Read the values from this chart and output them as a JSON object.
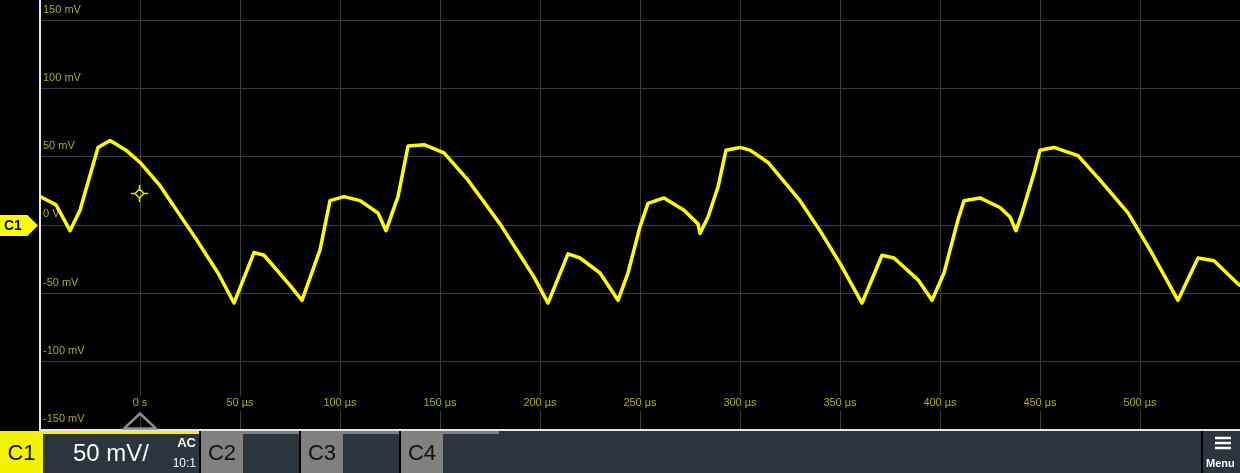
{
  "chart_data": {
    "type": "line",
    "x": [
      -50,
      -42,
      -35,
      -30,
      -21,
      -15,
      -7,
      0,
      10,
      28,
      39,
      47,
      57,
      62,
      75,
      81,
      90,
      95,
      102,
      110,
      119,
      123,
      129,
      134,
      142,
      152,
      164,
      180,
      197,
      204,
      214,
      220,
      230,
      239,
      244,
      250,
      254,
      262,
      272,
      279,
      280,
      284,
      289,
      293,
      300,
      305,
      314,
      330,
      340,
      350,
      361,
      371,
      377,
      389,
      396,
      402,
      409,
      412,
      420,
      430,
      435,
      438,
      441,
      447,
      450,
      457,
      469,
      480,
      494,
      505,
      519,
      529,
      537,
      549,
      550
    ],
    "series": [
      {
        "name": "C1",
        "color": "#ffff00",
        "values": [
          21,
          15,
          -4,
          11,
          57,
          62,
          55,
          46,
          29,
          -10,
          -35,
          -57,
          -20,
          -22,
          -44,
          -55,
          -18,
          18,
          21,
          18,
          9,
          -4,
          21,
          58,
          59,
          53,
          33,
          1,
          -38,
          -57,
          -21,
          -24,
          -35,
          -55,
          -35,
          -1,
          16,
          20,
          11,
          1,
          -6,
          6,
          28,
          55,
          57,
          55,
          46,
          18,
          -4,
          -28,
          -57,
          -22,
          -24,
          -40,
          -55,
          -35,
          4,
          18,
          20,
          13,
          6,
          -4,
          9,
          38,
          55,
          57,
          51,
          33,
          9,
          -18,
          -55,
          -24,
          -26,
          -43,
          -44
        ]
      }
    ],
    "xlim": [
      -50,
      550
    ],
    "xticks": [
      {
        "value": 0,
        "label": "0 s"
      },
      {
        "value": 50,
        "label": "50 µs"
      },
      {
        "value": 100,
        "label": "100 µs"
      },
      {
        "value": 150,
        "label": "150 µs"
      },
      {
        "value": 200,
        "label": "200 µs"
      },
      {
        "value": 250,
        "label": "250 µs"
      },
      {
        "value": 300,
        "label": "300 µs"
      },
      {
        "value": 350,
        "label": "350 µs"
      },
      {
        "value": 400,
        "label": "400 µs"
      },
      {
        "value": 450,
        "label": "450 µs"
      },
      {
        "value": 500,
        "label": "500 µs"
      }
    ],
    "ylim": [
      -150,
      165
    ],
    "yticks": [
      {
        "value": -150,
        "label": "-150 mV"
      },
      {
        "value": -100,
        "label": "-100 mV"
      },
      {
        "value": -50,
        "label": "-50 mV"
      },
      {
        "value": 0,
        "label": "0 V"
      },
      {
        "value": 50,
        "label": "50 mV"
      },
      {
        "value": 100,
        "label": "100 mV"
      },
      {
        "value": 150,
        "label": "150 mV"
      }
    ],
    "grid": true,
    "marker": "none",
    "line_style": "solid",
    "annotations": [
      "C1",
      "50 mV/",
      "AC",
      "10:1",
      "C2",
      "C3",
      "C4",
      "Menu"
    ]
  }
}
